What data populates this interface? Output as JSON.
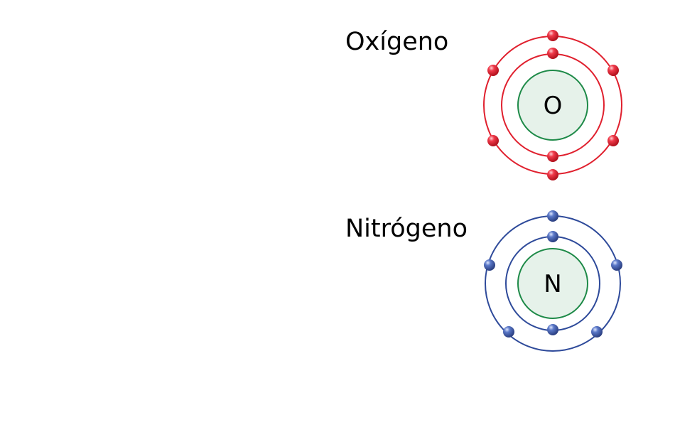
{
  "atoms": [
    {
      "name": "Oxígeno",
      "symbol": "O",
      "inner_shell_electrons": 2,
      "outer_shell_electrons": 6,
      "color": "#e0202e",
      "electron_color": "#e8243a"
    },
    {
      "name": "Nitrógeno",
      "symbol": "N",
      "inner_shell_electrons": 2,
      "outer_shell_electrons": 5,
      "color": "#2e4a9a",
      "electron_color": "#4a68b8"
    }
  ],
  "nucleus": {
    "fill": "#e6f2ea",
    "stroke": "#1e8a48"
  }
}
